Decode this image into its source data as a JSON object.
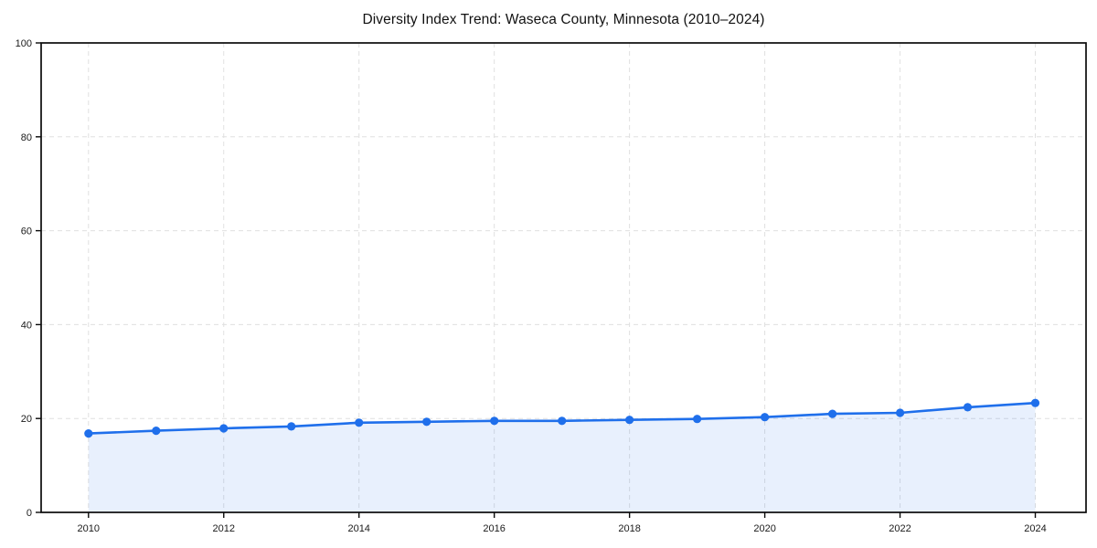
{
  "page": {
    "background": "#ffffff"
  },
  "chart_data": {
    "type": "line",
    "title": "Diversity Index Trend: Waseca County, Minnesota (2010–2024)",
    "series": [
      {
        "name": "Diversity Index",
        "x": [
          2010,
          2011,
          2012,
          2013,
          2014,
          2015,
          2016,
          2017,
          2018,
          2019,
          2020,
          2021,
          2022,
          2023,
          2024
        ],
        "values": [
          16.8,
          17.4,
          17.9,
          18.3,
          19.1,
          19.3,
          19.5,
          19.5,
          19.7,
          19.9,
          20.3,
          21.0,
          21.2,
          22.4,
          23.3
        ]
      }
    ],
    "xlabel": "",
    "ylabel": "",
    "xlim": [
      2009.3,
      2024.75
    ],
    "ylim": [
      0,
      100
    ],
    "xticks": [
      2010,
      2012,
      2014,
      2016,
      2018,
      2020,
      2022,
      2024
    ],
    "yticks": [
      0,
      20,
      40,
      60,
      80,
      100
    ],
    "grid": true,
    "grid_style": "dashed",
    "legend": "none",
    "marker": "circle",
    "area_fill": true,
    "colors": {
      "line": "#1f6feb",
      "marker": "#1f6feb",
      "area_fill": "#1f6feb",
      "area_fill_opacity": 0.1,
      "grid": "#e0e0e0",
      "axis": "#0a0a0a",
      "tick_label": "#1a1a1a",
      "title": "#111111"
    }
  }
}
